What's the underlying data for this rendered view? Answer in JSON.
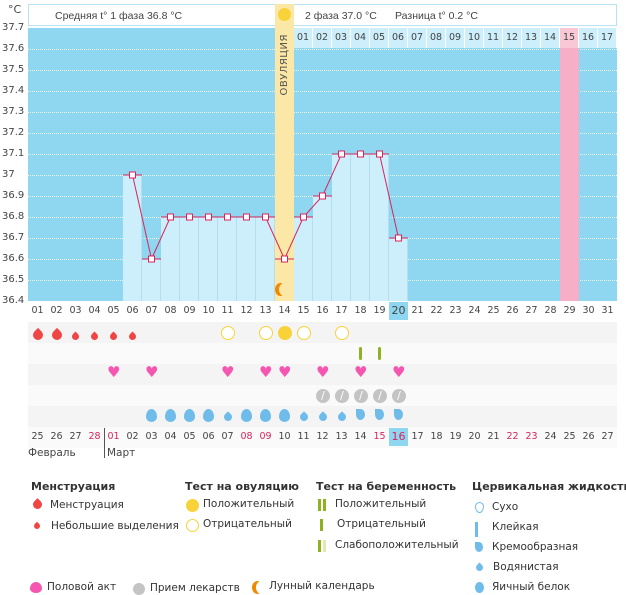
{
  "y_unit": "°C",
  "header": {
    "phase1": "Средняя t° 1 фаза 36.8 °C",
    "phase2": "2 фаза 37.0 °C",
    "diff": "Разница t° 0.2 °C"
  },
  "ovulation_label": "ОВУЛЯЦИЯ",
  "colors": {
    "background": "#8fd6f1",
    "bar": "#cdeefb",
    "line": "#d8245c",
    "ovulation": "#fbe7a6",
    "highlight_day": "#f7afc7",
    "menstruation": "#f04545",
    "ov_test": "#f7d339",
    "preg_test": "#8fb320",
    "heart": "#f556b0",
    "pill": "#c4c4c4",
    "fluid": "#6fbcea"
  },
  "chart_data": {
    "type": "line",
    "xlabel": "",
    "ylabel": "°C",
    "ylim": [
      36.4,
      37.7
    ],
    "yticks": [
      "37.7",
      "37.6",
      "37.5",
      "37.4",
      "37.3",
      "37.2",
      "37.1",
      "37",
      "36.9",
      "36.8",
      "36.7",
      "36.6",
      "36.5",
      "36.4"
    ],
    "grid": true,
    "cycle_days": [
      "01",
      "02",
      "03",
      "04",
      "05",
      "06",
      "07",
      "08",
      "09",
      "10",
      "11",
      "12",
      "13",
      "14",
      "15",
      "16",
      "17",
      "18",
      "19",
      "20",
      "21",
      "22",
      "23",
      "24",
      "25",
      "26",
      "27",
      "28",
      "29",
      "30",
      "31"
    ],
    "x": [
      6,
      7,
      8,
      9,
      10,
      11,
      12,
      13,
      14,
      15,
      16,
      17,
      18,
      19,
      20
    ],
    "y": [
      37.0,
      36.6,
      36.8,
      36.8,
      36.8,
      36.8,
      36.8,
      36.8,
      36.6,
      36.8,
      36.9,
      37.1,
      37.1,
      37.1,
      36.7
    ],
    "ovulation_day": 14,
    "current_day": 20,
    "highlight_day": 29,
    "phase2_days": [
      "01",
      "02",
      "03",
      "04",
      "05",
      "06",
      "07",
      "08",
      "09",
      "10",
      "11",
      "12",
      "13",
      "14",
      "15",
      "16",
      "17"
    ],
    "calendar_dates": [
      "25",
      "26",
      "27",
      "28",
      "01",
      "02",
      "03",
      "04",
      "05",
      "06",
      "07",
      "08",
      "09",
      "10",
      "11",
      "12",
      "13",
      "14",
      "15",
      "16",
      "17",
      "18",
      "19",
      "20",
      "21",
      "22",
      "23",
      "24",
      "25",
      "26",
      "27"
    ],
    "weekend_dates_idx": [
      4,
      11,
      12,
      18,
      19,
      25,
      26
    ],
    "weekend_idx_extra": [
      3
    ],
    "months": [
      "Февраль",
      "Март"
    ]
  },
  "markers": {
    "menstruation_heavy": [
      1,
      2
    ],
    "menstruation_light": [
      3,
      4,
      5,
      6
    ],
    "ov_test_negative": [
      11,
      13,
      15,
      17
    ],
    "ov_test_positive": [
      14
    ],
    "preg_test_negative": [
      18,
      19
    ],
    "sex": [
      5,
      7,
      11,
      13,
      14,
      16,
      18,
      20
    ],
    "medication": [
      16,
      17,
      18,
      19,
      20
    ],
    "fluid_eggwhite": [
      7,
      8,
      9,
      10,
      12,
      13,
      14
    ],
    "fluid_watery": [
      11,
      15,
      16,
      17
    ],
    "fluid_creamy": [
      18,
      19,
      20
    ],
    "moon": [
      14
    ]
  },
  "legend": {
    "menstruation": {
      "title": "Менструация",
      "items": [
        "Менструация",
        "Небольшие выделения"
      ]
    },
    "ov_test": {
      "title": "Тест на овуляцию",
      "items": [
        "Положительный",
        "Отрицательный"
      ]
    },
    "preg_test": {
      "title": "Тест на беременность",
      "items": [
        "Положительный",
        "Отрицательный",
        "Слабоположительный"
      ]
    },
    "fluid": {
      "title": "Цервикальная жидкость",
      "items": [
        "Сухо",
        "Клейкая",
        "Кремообразная",
        "Водянистая",
        "Яичный белок"
      ]
    },
    "bottom": [
      "Половой акт",
      "Прием лекарств",
      "Лунный календарь"
    ]
  }
}
